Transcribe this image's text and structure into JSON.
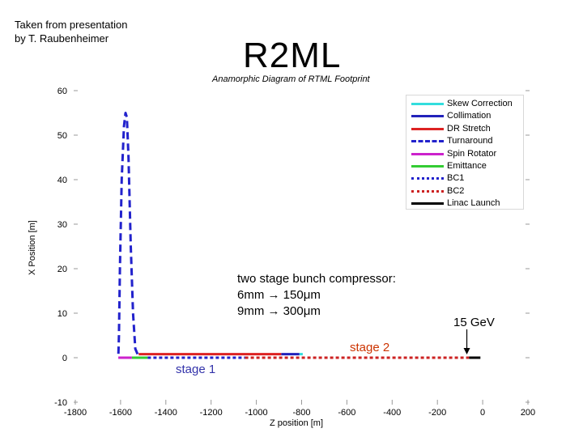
{
  "header": {
    "credit_line1": "Taken from presentation",
    "credit_line2": "by T. Raubenheimer",
    "title": "R2ML"
  },
  "annotations": {
    "compressor_title": "two stage bunch compressor:",
    "compressor_line1": "6mm → 150μm",
    "compressor_line2": "9mm → 300μm",
    "energy": "15 GeV",
    "stage1": "stage 1",
    "stage2": "stage 2"
  },
  "chart_data": {
    "type": "line",
    "title": "Anamorphic Diagram of RTML Footprint",
    "xlabel": "Z position [m]",
    "ylabel": "X Position [m]",
    "xlim": [
      -1800,
      200
    ],
    "ylim": [
      -10,
      60
    ],
    "x_ticks": [
      -1800,
      -1600,
      -1400,
      -1200,
      -1000,
      -800,
      -600,
      -400,
      -200,
      0,
      200
    ],
    "y_ticks": [
      -10,
      0,
      10,
      20,
      30,
      40,
      50,
      60
    ],
    "x_tick_labels": [
      "-1800",
      "-1600",
      "-1400",
      "-1200",
      "-1000",
      "-800",
      "-600",
      "-400",
      "-200",
      "0",
      "200"
    ],
    "y_tick_labels": [
      "-10",
      "0",
      "10",
      "20",
      "30",
      "40",
      "50",
      "60"
    ],
    "legend": "top-right",
    "series": [
      {
        "name": "Skew Correction",
        "color": "#33dddd",
        "dash": "solid",
        "points": [
          [
            -810,
            0.8
          ],
          [
            -795,
            0.8
          ]
        ]
      },
      {
        "name": "Collimation",
        "color": "#2222bb",
        "dash": "solid",
        "points": [
          [
            -890,
            0.8
          ],
          [
            -810,
            0.8
          ]
        ]
      },
      {
        "name": "DR Stretch",
        "color": "#dd2222",
        "dash": "solid",
        "points": [
          [
            -1520,
            0.8
          ],
          [
            -890,
            0.8
          ]
        ]
      },
      {
        "name": "Turnaround",
        "color": "#2222cc",
        "dash": "dashed",
        "points": [
          [
            -1525,
            0.8
          ],
          [
            -1535,
            2
          ],
          [
            -1545,
            10
          ],
          [
            -1555,
            25
          ],
          [
            -1565,
            45
          ],
          [
            -1572,
            54
          ],
          [
            -1578,
            55
          ],
          [
            -1585,
            52
          ],
          [
            -1595,
            40
          ],
          [
            -1603,
            20
          ],
          [
            -1607,
            5
          ],
          [
            -1610,
            0
          ]
        ]
      },
      {
        "name": "Spin Rotator",
        "color": "#cc22cc",
        "dash": "solid",
        "points": [
          [
            -1610,
            0
          ],
          [
            -1550,
            0
          ]
        ]
      },
      {
        "name": "Emittance",
        "color": "#33cc33",
        "dash": "solid",
        "points": [
          [
            -1550,
            0
          ],
          [
            -1480,
            0
          ]
        ]
      },
      {
        "name": "BC1",
        "color": "#2222cc",
        "dash": "dotted",
        "points": [
          [
            -1480,
            0
          ],
          [
            -1050,
            0
          ]
        ]
      },
      {
        "name": "BC2",
        "color": "#cc2222",
        "dash": "dotted",
        "points": [
          [
            -1050,
            0
          ],
          [
            -60,
            0
          ]
        ]
      },
      {
        "name": "Linac Launch",
        "color": "#000000",
        "dash": "solid",
        "points": [
          [
            -60,
            0
          ],
          [
            -10,
            0
          ]
        ]
      }
    ]
  }
}
